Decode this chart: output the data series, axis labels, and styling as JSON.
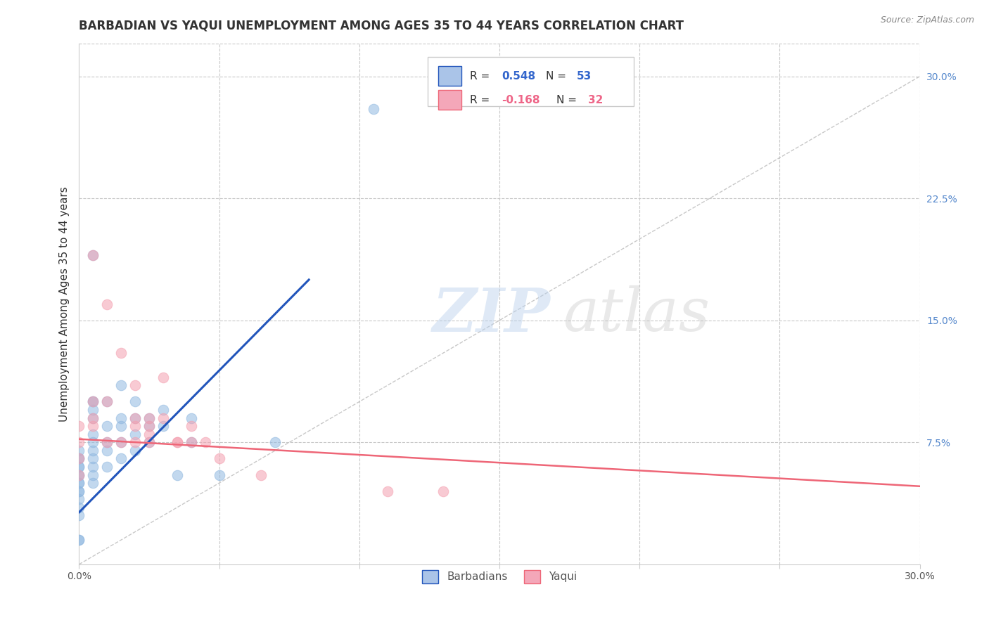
{
  "title": "BARBADIAN VS YAQUI UNEMPLOYMENT AMONG AGES 35 TO 44 YEARS CORRELATION CHART",
  "source": "Source: ZipAtlas.com",
  "ylabel": "Unemployment Among Ages 35 to 44 years",
  "xlim": [
    0.0,
    0.3
  ],
  "ylim": [
    0.0,
    0.32
  ],
  "legend_color1": "#aac4e8",
  "legend_color2": "#f4a7b9",
  "blue_scatter_color": "#90b8e0",
  "pink_scatter_color": "#f4a0b0",
  "blue_line_color": "#2255bb",
  "pink_line_color": "#ee6677",
  "background_color": "#ffffff",
  "grid_color": "#c8c8c8",
  "barbadians_x": [
    0.0,
    0.0,
    0.0,
    0.0,
    0.0,
    0.0,
    0.0,
    0.0,
    0.0,
    0.0,
    0.0,
    0.0,
    0.0,
    0.0,
    0.0,
    0.0,
    0.005,
    0.005,
    0.005,
    0.005,
    0.005,
    0.005,
    0.005,
    0.005,
    0.005,
    0.005,
    0.005,
    0.005,
    0.01,
    0.01,
    0.01,
    0.01,
    0.01,
    0.015,
    0.015,
    0.015,
    0.015,
    0.015,
    0.02,
    0.02,
    0.02,
    0.02,
    0.025,
    0.025,
    0.025,
    0.03,
    0.03,
    0.035,
    0.04,
    0.04,
    0.05,
    0.07,
    0.105
  ],
  "barbadians_y": [
    0.03,
    0.035,
    0.04,
    0.045,
    0.045,
    0.05,
    0.05,
    0.055,
    0.055,
    0.06,
    0.06,
    0.065,
    0.065,
    0.07,
    0.015,
    0.015,
    0.05,
    0.055,
    0.06,
    0.065,
    0.07,
    0.075,
    0.08,
    0.09,
    0.095,
    0.1,
    0.1,
    0.19,
    0.06,
    0.07,
    0.075,
    0.085,
    0.1,
    0.065,
    0.075,
    0.085,
    0.09,
    0.11,
    0.07,
    0.08,
    0.09,
    0.1,
    0.075,
    0.085,
    0.09,
    0.085,
    0.095,
    0.055,
    0.075,
    0.09,
    0.055,
    0.075,
    0.28
  ],
  "yaqui_x": [
    0.0,
    0.0,
    0.0,
    0.0,
    0.005,
    0.005,
    0.005,
    0.005,
    0.01,
    0.01,
    0.01,
    0.015,
    0.015,
    0.02,
    0.02,
    0.02,
    0.02,
    0.025,
    0.025,
    0.025,
    0.025,
    0.03,
    0.03,
    0.035,
    0.035,
    0.04,
    0.04,
    0.045,
    0.05,
    0.065,
    0.11,
    0.13
  ],
  "yaqui_y": [
    0.055,
    0.065,
    0.075,
    0.085,
    0.085,
    0.09,
    0.1,
    0.19,
    0.075,
    0.1,
    0.16,
    0.075,
    0.13,
    0.075,
    0.085,
    0.09,
    0.11,
    0.075,
    0.08,
    0.085,
    0.09,
    0.09,
    0.115,
    0.075,
    0.075,
    0.075,
    0.085,
    0.075,
    0.065,
    0.055,
    0.045,
    0.045
  ],
  "blue_line_x0": 0.0,
  "blue_line_y0": 0.032,
  "blue_line_x1": 0.082,
  "blue_line_y1": 0.175,
  "pink_line_x0": 0.0,
  "pink_line_y0": 0.077,
  "pink_line_x1": 0.3,
  "pink_line_y1": 0.048
}
